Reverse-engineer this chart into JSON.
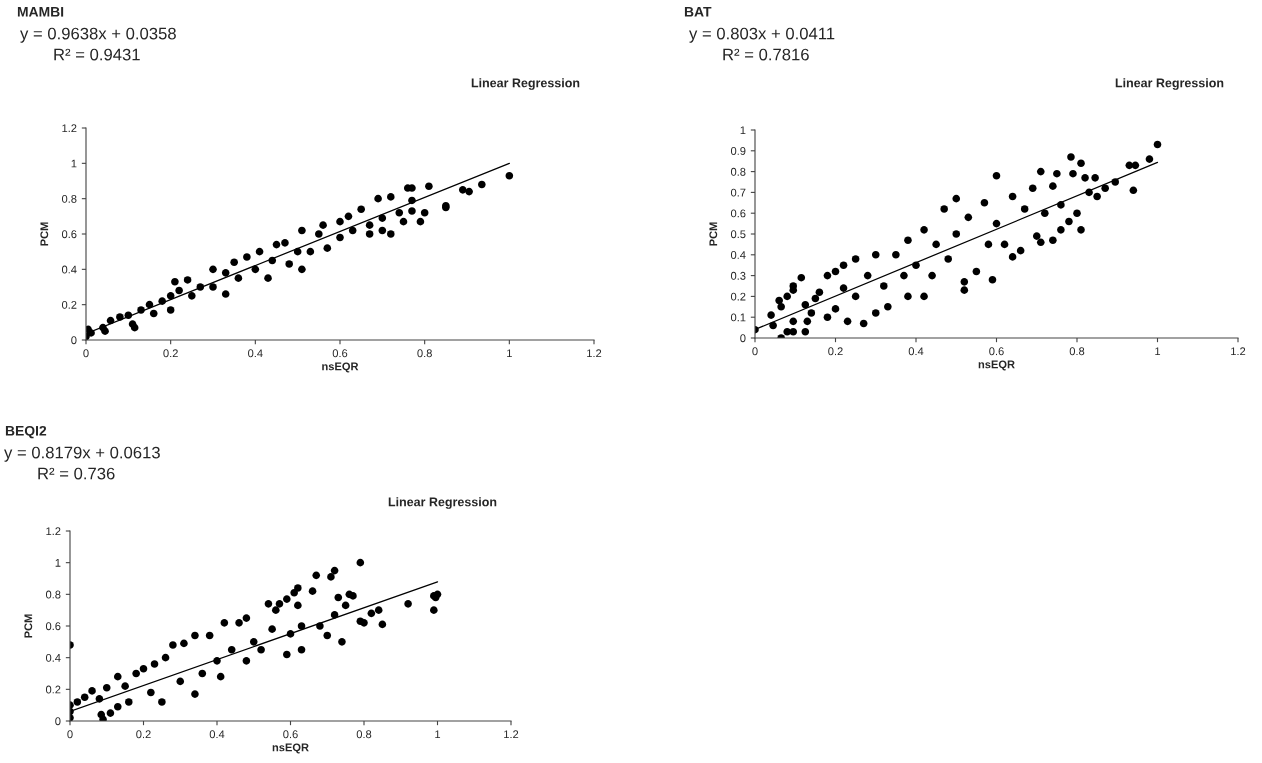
{
  "chart_data": [
    {
      "type": "scatter",
      "title": "MAMBI",
      "xlabel": "nsEQR",
      "ylabel": "PCM",
      "xlim": [
        0,
        1.2
      ],
      "xticks": [
        0,
        0.2,
        0.4,
        0.6,
        0.8,
        1,
        1.2
      ],
      "ylim": [
        0,
        1.2
      ],
      "yticks": [
        0,
        0.2,
        0.4,
        0.6,
        0.8,
        1,
        1.2
      ],
      "annotations": [
        "y = 0.9638x + 0.0358",
        "R² = 0.9431",
        "Linear Regression"
      ],
      "series": [
        {
          "marker": "circle",
          "color": "#000000",
          "x": [
            0,
            0.005,
            0.012,
            0.04,
            0.045,
            0.058,
            0.08,
            0.1,
            0.11,
            0.115,
            0.13,
            0.15,
            0.16,
            0.18,
            0.2,
            0.2,
            0.21,
            0.22,
            0.24,
            0.25,
            0.27,
            0.3,
            0.3,
            0.33,
            0.33,
            0.35,
            0.36,
            0.38,
            0.4,
            0.41,
            0.43,
            0.44,
            0.45,
            0.47,
            0.48,
            0.5,
            0.51,
            0.51,
            0.53,
            0.55,
            0.56,
            0.57,
            0.6,
            0.6,
            0.62,
            0.63,
            0.65,
            0.67,
            0.67,
            0.69,
            0.7,
            0.7,
            0.72,
            0.72,
            0.74,
            0.75,
            0.76,
            0.77,
            0.77,
            0.77,
            0.79,
            0.8,
            0.81,
            0.85,
            0.85,
            0.89,
            0.905,
            0.935,
            1.0
          ],
          "values": [
            0.02,
            0.06,
            0.04,
            0.07,
            0.05,
            0.11,
            0.13,
            0.14,
            0.09,
            0.07,
            0.17,
            0.2,
            0.15,
            0.22,
            0.17,
            0.25,
            0.33,
            0.28,
            0.34,
            0.25,
            0.3,
            0.4,
            0.3,
            0.26,
            0.38,
            0.44,
            0.35,
            0.47,
            0.4,
            0.5,
            0.35,
            0.45,
            0.54,
            0.55,
            0.43,
            0.5,
            0.4,
            0.62,
            0.5,
            0.6,
            0.65,
            0.52,
            0.67,
            0.58,
            0.7,
            0.62,
            0.74,
            0.6,
            0.65,
            0.8,
            0.69,
            0.62,
            0.81,
            0.6,
            0.72,
            0.67,
            0.86,
            0.86,
            0.79,
            0.73,
            0.67,
            0.72,
            0.87,
            0.76,
            0.75,
            0.85,
            0.84,
            0.88,
            0.93
          ]
        },
        {
          "type": "line",
          "color": "#000000",
          "x": [
            0,
            1
          ],
          "values": [
            0.036,
            1.0
          ]
        }
      ]
    },
    {
      "type": "scatter",
      "title": "BAT",
      "xlabel": "nsEQR",
      "ylabel": "PCM",
      "xlim": [
        0,
        1.2
      ],
      "xticks": [
        0,
        0.2,
        0.4,
        0.6,
        0.8,
        1,
        1.2
      ],
      "ylim": [
        0,
        1
      ],
      "yticks": [
        0,
        0.1,
        0.2,
        0.3,
        0.4,
        0.5,
        0.6,
        0.7,
        0.8,
        0.9,
        1
      ],
      "annotations": [
        "y = 0.803x + 0.0411",
        "R² = 0.7816",
        "Linear Regression"
      ],
      "series": [
        {
          "marker": "circle",
          "color": "#000000",
          "x": [
            0,
            0.04,
            0.045,
            0.06,
            0.065,
            0.065,
            0.08,
            0.08,
            0.095,
            0.095,
            0.095,
            0.095,
            0.115,
            0.125,
            0.125,
            0.13,
            0.14,
            0.15,
            0.16,
            0.18,
            0.18,
            0.2,
            0.2,
            0.22,
            0.22,
            0.23,
            0.25,
            0.25,
            0.27,
            0.28,
            0.3,
            0.3,
            0.32,
            0.33,
            0.35,
            0.37,
            0.38,
            0.38,
            0.4,
            0.42,
            0.42,
            0.44,
            0.45,
            0.47,
            0.48,
            0.5,
            0.5,
            0.52,
            0.52,
            0.53,
            0.55,
            0.57,
            0.58,
            0.59,
            0.6,
            0.6,
            0.62,
            0.64,
            0.64,
            0.66,
            0.67,
            0.69,
            0.7,
            0.71,
            0.71,
            0.72,
            0.74,
            0.74,
            0.75,
            0.76,
            0.76,
            0.78,
            0.785,
            0.79,
            0.8,
            0.81,
            0.81,
            0.82,
            0.83,
            0.85,
            0.845,
            0.87,
            0.895,
            0.93,
            0.94,
            0.945,
            0.98,
            1.0
          ],
          "values": [
            0.04,
            0.11,
            0.06,
            0.18,
            0.0,
            0.15,
            0.2,
            0.03,
            0.25,
            0.23,
            0.08,
            0.03,
            0.29,
            0.16,
            0.03,
            0.08,
            0.12,
            0.19,
            0.22,
            0.3,
            0.1,
            0.32,
            0.14,
            0.35,
            0.24,
            0.08,
            0.38,
            0.2,
            0.07,
            0.3,
            0.4,
            0.12,
            0.25,
            0.15,
            0.4,
            0.3,
            0.47,
            0.2,
            0.35,
            0.52,
            0.2,
            0.3,
            0.45,
            0.62,
            0.38,
            0.67,
            0.5,
            0.27,
            0.23,
            0.58,
            0.32,
            0.65,
            0.45,
            0.28,
            0.78,
            0.55,
            0.45,
            0.68,
            0.39,
            0.42,
            0.62,
            0.72,
            0.49,
            0.8,
            0.46,
            0.6,
            0.73,
            0.47,
            0.79,
            0.64,
            0.52,
            0.56,
            0.87,
            0.79,
            0.6,
            0.84,
            0.52,
            0.77,
            0.7,
            0.68,
            0.77,
            0.72,
            0.75,
            0.83,
            0.71,
            0.83,
            0.86,
            0.93
          ]
        },
        {
          "type": "line",
          "color": "#000000",
          "x": [
            0,
            1
          ],
          "values": [
            0.041,
            0.844
          ]
        }
      ]
    },
    {
      "type": "scatter",
      "title": "BEQI2",
      "xlabel": "nsEQR",
      "ylabel": "PCM",
      "xlim": [
        0,
        1.2
      ],
      "xticks": [
        0,
        0.2,
        0.4,
        0.6,
        0.8,
        1,
        1.2
      ],
      "ylim": [
        0,
        1.2
      ],
      "yticks": [
        0,
        0.2,
        0.4,
        0.6,
        0.8,
        1,
        1.2
      ],
      "annotations": [
        "y = 0.8179x + 0.0613",
        "R² = 0.736",
        "Linear Regression"
      ],
      "series": [
        {
          "marker": "circle",
          "color": "#000000",
          "x": [
            0,
            0,
            0,
            0,
            0.02,
            0.04,
            0.06,
            0.08,
            0.085,
            0.09,
            0.1,
            0.11,
            0.13,
            0.13,
            0.15,
            0.16,
            0.18,
            0.2,
            0.22,
            0.23,
            0.25,
            0.26,
            0.28,
            0.3,
            0.31,
            0.34,
            0.34,
            0.36,
            0.38,
            0.4,
            0.41,
            0.42,
            0.44,
            0.46,
            0.48,
            0.48,
            0.5,
            0.52,
            0.54,
            0.55,
            0.56,
            0.57,
            0.59,
            0.59,
            0.6,
            0.61,
            0.62,
            0.62,
            0.63,
            0.63,
            0.66,
            0.67,
            0.68,
            0.7,
            0.71,
            0.72,
            0.72,
            0.73,
            0.74,
            0.75,
            0.76,
            0.77,
            0.79,
            0.79,
            0.8,
            0.82,
            0.84,
            0.85,
            0.92,
            0.99,
            0.99,
            1.0,
            0.995
          ],
          "values": [
            0.48,
            0.1,
            0.06,
            0.02,
            0.12,
            0.15,
            0.19,
            0.14,
            0.04,
            0.01,
            0.21,
            0.05,
            0.09,
            0.28,
            0.22,
            0.12,
            0.3,
            0.33,
            0.18,
            0.36,
            0.12,
            0.4,
            0.48,
            0.25,
            0.49,
            0.54,
            0.17,
            0.3,
            0.54,
            0.38,
            0.28,
            0.62,
            0.45,
            0.62,
            0.65,
            0.38,
            0.5,
            0.45,
            0.74,
            0.58,
            0.7,
            0.74,
            0.77,
            0.42,
            0.55,
            0.81,
            0.84,
            0.73,
            0.6,
            0.45,
            0.82,
            0.92,
            0.6,
            0.54,
            0.91,
            0.95,
            0.67,
            0.78,
            0.5,
            0.73,
            0.8,
            0.79,
            1.0,
            0.63,
            0.62,
            0.68,
            0.7,
            0.61,
            0.74,
            0.79,
            0.7,
            0.8,
            0.78
          ]
        },
        {
          "type": "line",
          "color": "#000000",
          "x": [
            0,
            1
          ],
          "values": [
            0.061,
            0.879
          ]
        }
      ]
    }
  ]
}
